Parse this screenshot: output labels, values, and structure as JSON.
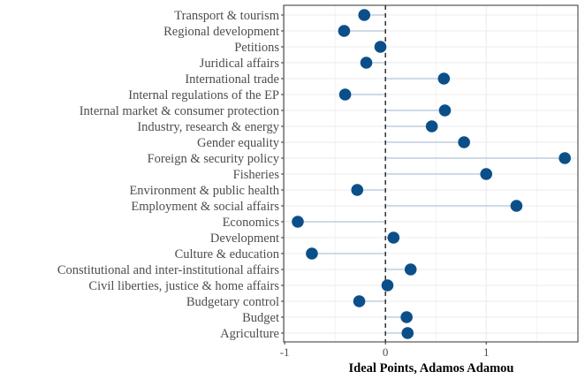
{
  "chart_data": {
    "type": "lollipop",
    "title": "",
    "xlabel": "Ideal Points, Adamos Adamou",
    "ylabel": "",
    "xlim": [
      -1.01,
      1.91
    ],
    "xticks": [
      -1,
      0,
      1
    ],
    "xtick_labels": [
      "-1",
      "0",
      "1"
    ],
    "reference_line": 0,
    "grid": true,
    "colors": {
      "point": "#0b4f8a",
      "stem": "#b3c3d6",
      "grid": "#ebebeb",
      "panel_border": "#333333"
    },
    "categories": [
      "Transport & tourism",
      "Regional development",
      "Petitions",
      "Juridical affairs",
      "International trade",
      "Internal regulations of the EP",
      "Internal market & consumer protection",
      "Industry, research & energy",
      "Gender equality",
      "Foreign & security policy",
      "Fisheries",
      "Environment & public health",
      "Employment & social affairs",
      "Economics",
      "Development",
      "Culture & education",
      "Constitutional and inter-institutional affairs",
      "Civil liberties, justice & home affairs",
      "Budgetary control",
      "Budget",
      "Agriculture"
    ],
    "values": [
      -0.21,
      -0.41,
      -0.05,
      -0.19,
      0.58,
      -0.4,
      0.59,
      0.46,
      0.78,
      1.78,
      1.0,
      -0.28,
      1.3,
      -0.87,
      0.08,
      -0.73,
      0.25,
      0.02,
      -0.26,
      0.21,
      0.22
    ]
  }
}
